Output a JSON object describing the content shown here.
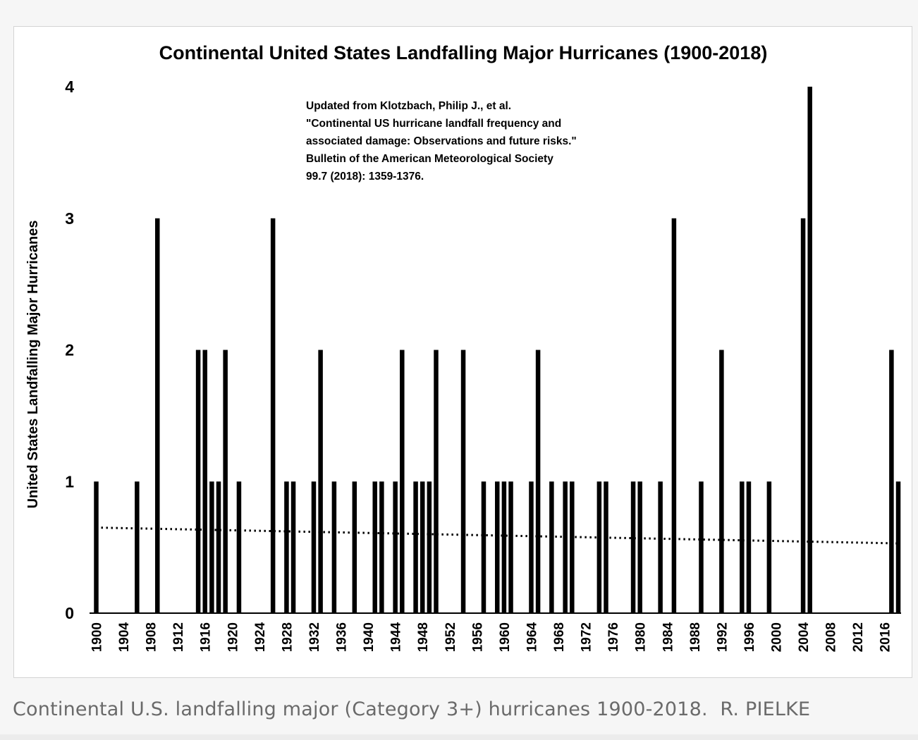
{
  "caption": {
    "text": "Continental U.S. landfalling major (Category 3+) hurricanes 1900-2018.",
    "credit": "R. PIELKE"
  },
  "chart_data": {
    "type": "bar",
    "title": "Continental United States Landfalling Major Hurricanes (1900-2018)",
    "xlabel": "",
    "ylabel": "United States Landfalling Major Hurricanes",
    "xlim": [
      1900,
      2018
    ],
    "ylim": [
      0,
      4
    ],
    "yticks": [
      "0",
      "1",
      "2",
      "3",
      "4"
    ],
    "xticks": [
      "1900",
      "1904",
      "1908",
      "1912",
      "1916",
      "1920",
      "1924",
      "1928",
      "1932",
      "1936",
      "1940",
      "1944",
      "1948",
      "1952",
      "1956",
      "1960",
      "1964",
      "1968",
      "1972",
      "1976",
      "1980",
      "1984",
      "1988",
      "1992",
      "1996",
      "2000",
      "2004",
      "2008",
      "2012",
      "2016"
    ],
    "grid": false,
    "legend": "none",
    "annotation": [
      "Updated from Klotzbach, Philip J., et al.",
      "\"Continental US hurricane landfall frequency and",
      "associated damage: Observations and future risks.\"",
      "Bulletin of the American Meteorological Society",
      "99.7 (2018): 1359-1376."
    ],
    "trendline": {
      "style": "dotted",
      "start": [
        1900,
        0.65
      ],
      "end": [
        2018,
        0.53
      ]
    },
    "series": [
      {
        "name": "Major hurricanes",
        "points": [
          [
            1900,
            1
          ],
          [
            1906,
            1
          ],
          [
            1909,
            3
          ],
          [
            1915,
            2
          ],
          [
            1916,
            2
          ],
          [
            1917,
            1
          ],
          [
            1918,
            1
          ],
          [
            1919,
            2
          ],
          [
            1921,
            1
          ],
          [
            1926,
            3
          ],
          [
            1928,
            1
          ],
          [
            1929,
            1
          ],
          [
            1932,
            1
          ],
          [
            1933,
            2
          ],
          [
            1935,
            1
          ],
          [
            1938,
            1
          ],
          [
            1941,
            1
          ],
          [
            1942,
            1
          ],
          [
            1944,
            1
          ],
          [
            1945,
            2
          ],
          [
            1947,
            1
          ],
          [
            1948,
            1
          ],
          [
            1949,
            1
          ],
          [
            1950,
            2
          ],
          [
            1954,
            2
          ],
          [
            1957,
            1
          ],
          [
            1959,
            1
          ],
          [
            1960,
            1
          ],
          [
            1961,
            1
          ],
          [
            1964,
            1
          ],
          [
            1965,
            2
          ],
          [
            1967,
            1
          ],
          [
            1969,
            1
          ],
          [
            1970,
            1
          ],
          [
            1974,
            1
          ],
          [
            1975,
            1
          ],
          [
            1979,
            1
          ],
          [
            1980,
            1
          ],
          [
            1983,
            1
          ],
          [
            1985,
            3
          ],
          [
            1989,
            1
          ],
          [
            1992,
            2
          ],
          [
            1995,
            1
          ],
          [
            1996,
            1
          ],
          [
            1999,
            1
          ],
          [
            2004,
            3
          ],
          [
            2005,
            4
          ],
          [
            2017,
            2
          ],
          [
            2018,
            1
          ]
        ]
      }
    ]
  }
}
